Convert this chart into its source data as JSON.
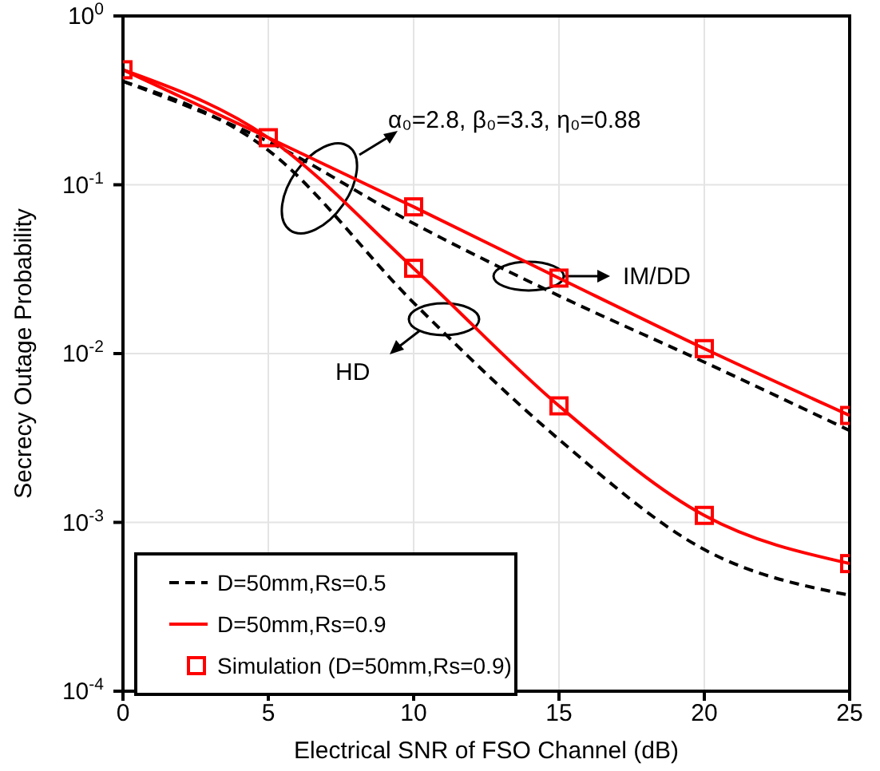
{
  "chart_data": {
    "type": "line",
    "xlabel": "Electrical SNR of FSO Channel (dB)",
    "ylabel": "Secrecy Outage Probability",
    "log": "y",
    "grid": true,
    "legend": "bottom left",
    "line_style": "solid",
    "marker": "none",
    "xlim": [
      0,
      25
    ],
    "xticks": [
      0,
      5,
      10,
      15,
      20,
      25
    ],
    "ylim": [
      0.0001,
      1
    ],
    "yticks": [
      {
        "value": 1,
        "label": "10$^{0}$"
      },
      {
        "value": 0.1,
        "label": "10$^{-1}$"
      },
      {
        "value": 0.01,
        "label": "10$^{-2}$"
      },
      {
        "value": 0.001,
        "label": "10$^{-3}$"
      },
      {
        "value": 0.0001,
        "label": "10$^{-4}$"
      }
    ],
    "series": [
      {
        "name": "D=50mm,Rs=0.5",
        "color": "#000000",
        "line_style": "dashed",
        "x": [
          0,
          5,
          10,
          15,
          20,
          25
        ],
        "values": [
          0.41,
          0.18,
          0.059,
          0.022,
          0.0089,
          0.0035
        ]
      },
      {
        "color": "#000000",
        "line_style": "dashed",
        "x": [
          0,
          5,
          10,
          15,
          20,
          25
        ],
        "values": [
          0.41,
          0.16,
          0.02,
          0.0031,
          0.00069,
          0.00037
        ]
      },
      {
        "name": "D=50mm,Rs=0.9",
        "color": "#ff0000",
        "x": [
          0,
          5,
          10,
          15,
          20,
          25
        ],
        "values": [
          0.48,
          0.19,
          0.074,
          0.028,
          0.0107,
          0.0043
        ]
      },
      {
        "color": "#ff0000",
        "x": [
          0,
          5,
          10,
          15,
          20,
          25
        ],
        "values": [
          0.48,
          0.19,
          0.032,
          0.0049,
          0.0011,
          0.00057
        ]
      },
      {
        "name": "Simulation (D=50mm,Rs=0.9)",
        "type": "scatter",
        "marker": "square",
        "color": "#ff0000",
        "x": [
          0,
          5,
          10,
          15,
          20,
          25,
          10,
          15,
          20,
          25
        ],
        "values": [
          0.48,
          0.19,
          0.074,
          0.028,
          0.0107,
          0.0043,
          0.032,
          0.0049,
          0.0011,
          0.00057
        ]
      }
    ],
    "annotations": [
      "α₀=2.8, β₀=3.3, η₀=0.88",
      "IM/DD",
      "HD"
    ]
  }
}
